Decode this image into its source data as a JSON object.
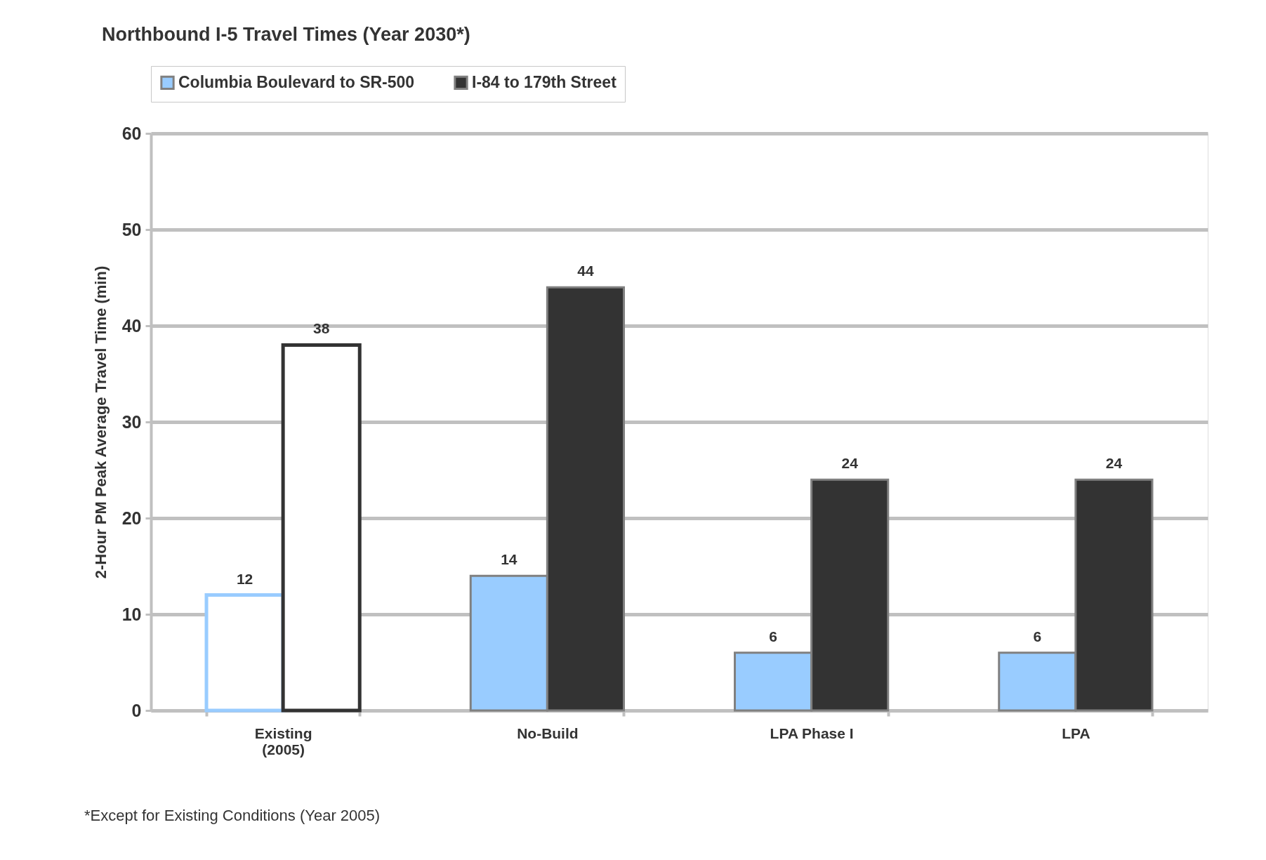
{
  "chart_data": {
    "type": "bar",
    "title": "Northbound I-5 Travel Times (Year 2030*)",
    "ylabel": "2-Hour PM Peak Average Travel Time (min)",
    "categories": [
      "Existing\n(2005)",
      "No-Build",
      "LPA Phase I",
      "LPA"
    ],
    "series": [
      {
        "name": "Columbia Boulevard to SR-500",
        "color": "#99ccff",
        "colors": [
          "#ffffff",
          "#99ccff",
          "#99ccff",
          "#99ccff"
        ],
        "values": [
          12,
          14,
          6,
          6
        ]
      },
      {
        "name": "I-84 to 179th Street",
        "color": "#333333",
        "colors": [
          "#ffffff",
          "#333333",
          "#333333",
          "#333333"
        ],
        "values": [
          38,
          44,
          24,
          24
        ]
      }
    ],
    "ylim": [
      0,
      60
    ],
    "yticks": [
      0,
      10,
      20,
      30,
      40,
      50,
      60
    ],
    "grid": "y",
    "legend": "top",
    "data_labels": true,
    "annotations": [
      "*Except for Existing Conditions (Year 2005)"
    ]
  }
}
